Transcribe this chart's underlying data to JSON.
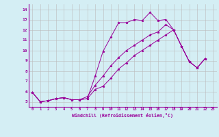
{
  "xlabel": "Windchill (Refroidissement éolien,°C)",
  "bg_color": "#d4eef4",
  "line_color": "#990099",
  "grid_color": "#bbbbbb",
  "xlim": [
    -0.5,
    23.5
  ],
  "ylim": [
    4.5,
    14.5
  ],
  "yticks": [
    5,
    6,
    7,
    8,
    9,
    10,
    11,
    12,
    13,
    14
  ],
  "xticks": [
    0,
    1,
    2,
    3,
    4,
    5,
    6,
    7,
    8,
    9,
    10,
    11,
    12,
    13,
    14,
    15,
    16,
    17,
    18,
    19,
    20,
    21,
    22,
    23
  ],
  "series": [
    [
      5.9,
      5.0,
      5.1,
      5.3,
      5.4,
      5.2,
      5.2,
      5.3,
      7.5,
      9.9,
      11.3,
      12.7,
      12.7,
      13.0,
      12.9,
      13.7,
      12.9,
      13.0,
      12.0,
      10.4,
      8.9,
      8.3,
      9.2
    ],
    [
      5.9,
      5.0,
      5.1,
      5.3,
      5.4,
      5.2,
      5.2,
      5.5,
      6.6,
      7.5,
      8.5,
      9.3,
      10.0,
      10.5,
      11.0,
      11.5,
      11.8,
      12.5,
      12.0,
      10.4,
      8.9,
      8.3,
      9.2
    ],
    [
      5.9,
      5.0,
      5.1,
      5.3,
      5.4,
      5.2,
      5.2,
      5.3,
      6.2,
      6.5,
      7.3,
      8.2,
      8.8,
      9.5,
      10.0,
      10.5,
      11.0,
      11.5,
      12.0,
      10.4,
      8.9,
      8.3,
      9.2
    ]
  ],
  "x_values": [
    0,
    1,
    2,
    3,
    4,
    5,
    6,
    7,
    8,
    9,
    10,
    11,
    12,
    13,
    14,
    15,
    16,
    17,
    18,
    19,
    20,
    21,
    22
  ]
}
